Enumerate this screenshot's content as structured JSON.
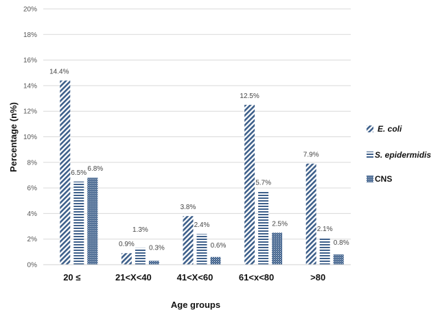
{
  "chart_data": {
    "type": "bar",
    "title": "",
    "xlabel": "Age groups",
    "ylabel": "Percentage (n%)",
    "ylim": [
      0,
      20
    ],
    "yticks": [
      "0%",
      "2%",
      "4%",
      "6%",
      "8%",
      "10%",
      "12%",
      "14%",
      "16%",
      "18%",
      "20%"
    ],
    "ytick_values": [
      0,
      2,
      4,
      6,
      8,
      10,
      12,
      14,
      16,
      18,
      20
    ],
    "grid": "horizontal",
    "legend_position": "right",
    "categories": [
      "20 ≤",
      "21<X<40",
      "41<X<60",
      "61<x<80",
      ">80"
    ],
    "series": [
      {
        "name": "E. coli",
        "pattern": "diagonal",
        "color": "#3d5f8a",
        "values": [
          14.4,
          0.9,
          3.8,
          12.5,
          7.9
        ],
        "labels": [
          "14.4%",
          "0.9%",
          "3.8%",
          "12.5%",
          "7.9%"
        ]
      },
      {
        "name": "S. epidermidis",
        "pattern": "horizontal",
        "color": "#3d5f8a",
        "values": [
          6.5,
          1.3,
          2.4,
          5.7,
          2.1
        ],
        "labels": [
          "6.5%",
          "1.3%",
          "2.4%",
          "5.7%",
          "2.1%"
        ]
      },
      {
        "name": "CNS",
        "pattern": "dots",
        "color": "#3d5f8a",
        "values": [
          6.8,
          0.3,
          0.6,
          2.5,
          0.8
        ],
        "labels": [
          "6.8%",
          "0.3%",
          "0.6%",
          "2.5%",
          "0.8%"
        ]
      }
    ]
  }
}
